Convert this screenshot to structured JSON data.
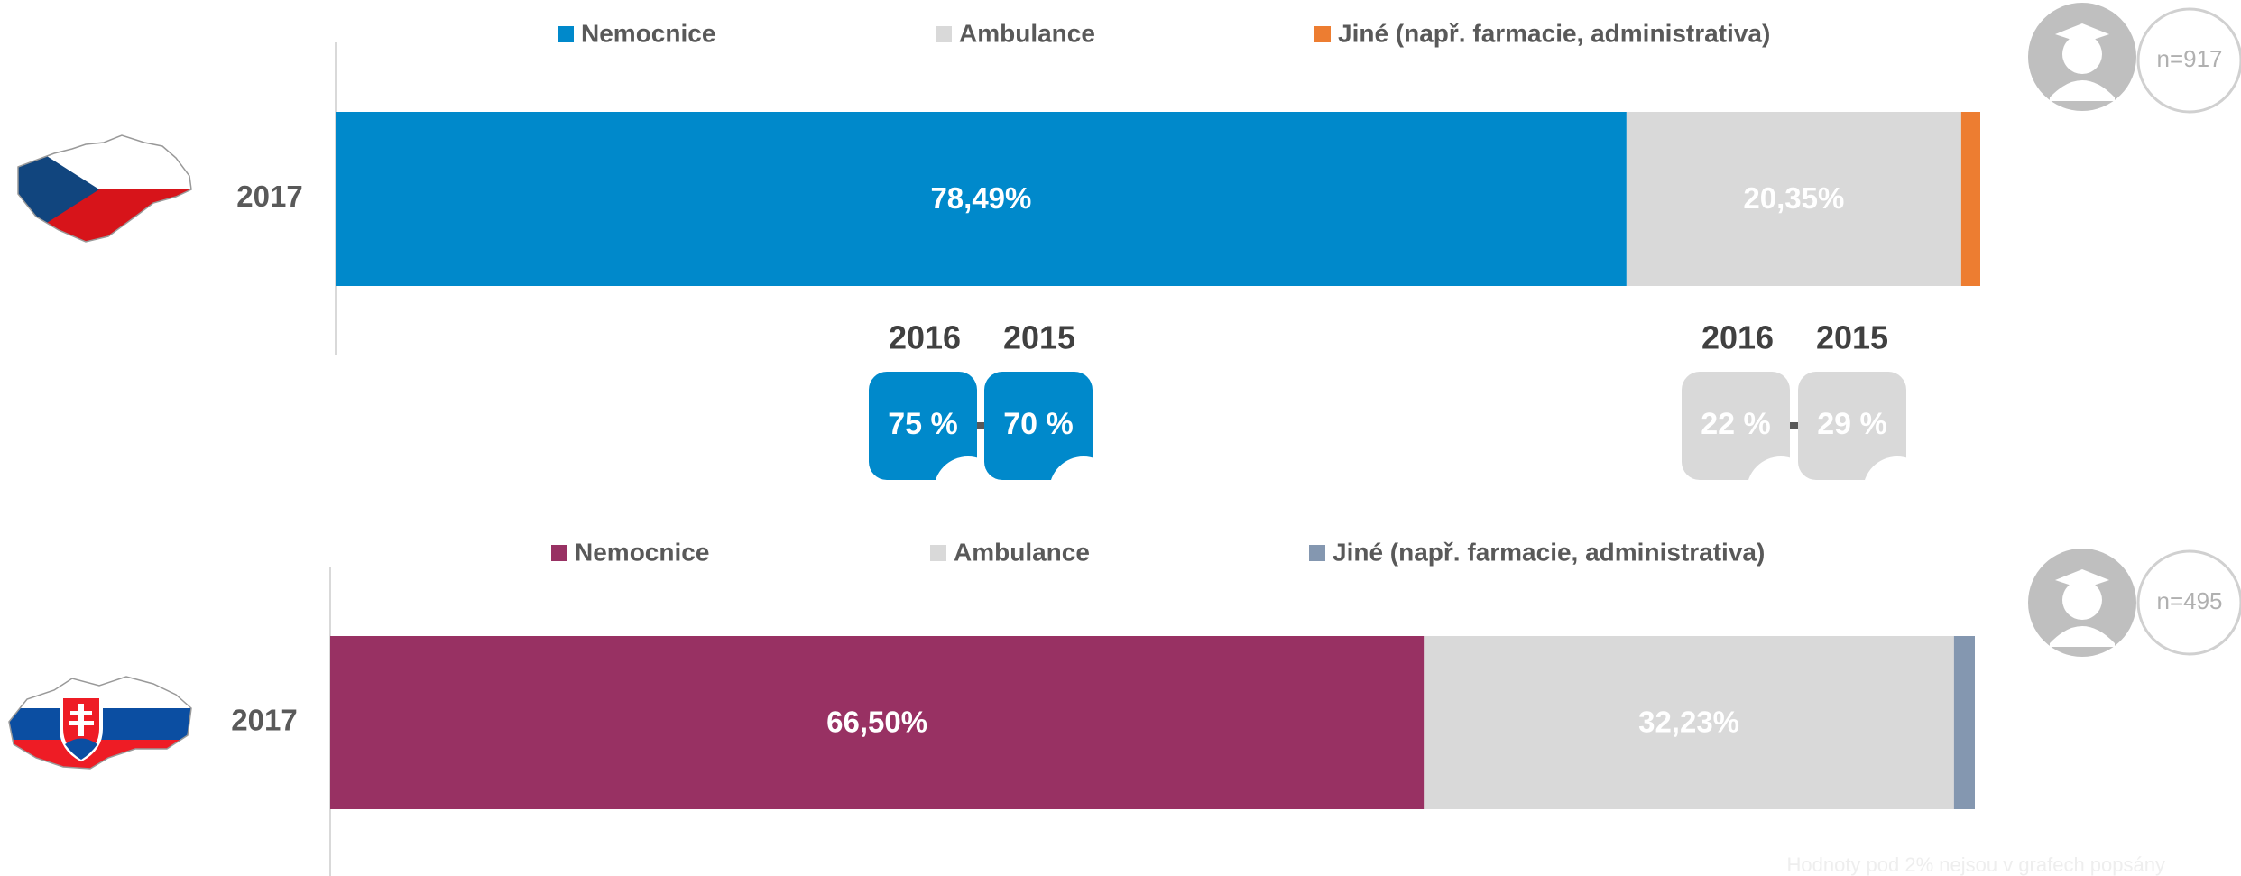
{
  "chart_data": [
    {
      "type": "stacked-bar",
      "categories": [
        "2017"
      ],
      "xlim": [
        0,
        100
      ],
      "n_label": "n=917",
      "series": [
        {
          "name": "Nemocnice",
          "color": "#0089cb",
          "values": [
            78.49
          ],
          "value_labels": [
            "78,49%"
          ]
        },
        {
          "name": "Ambulance",
          "color": "#d9d9d9",
          "values": [
            20.35
          ],
          "value_labels": [
            "20,35%"
          ]
        },
        {
          "name": "Jiné (např. farmacie, administrativa)",
          "color": "#ed7d31",
          "values": [
            1.16
          ],
          "value_labels": [
            null
          ]
        }
      ],
      "history": [
        {
          "years": [
            "2016",
            "2015"
          ],
          "values": [
            75,
            70
          ],
          "value_labels": [
            "75 %",
            "70 %"
          ],
          "color": "#0089cb"
        },
        {
          "years": [
            "2016",
            "2015"
          ],
          "values": [
            22,
            29
          ],
          "value_labels": [
            "22 %",
            "29 %"
          ],
          "color": "#d9d9d9"
        }
      ]
    },
    {
      "type": "stacked-bar",
      "categories": [
        "2017"
      ],
      "xlim": [
        0,
        100
      ],
      "n_label": "n=495",
      "series": [
        {
          "name": "Nemocnice",
          "color": "#983163",
          "values": [
            66.5
          ],
          "value_labels": [
            "66,50%"
          ]
        },
        {
          "name": "Ambulance",
          "color": "#d9d9d9",
          "values": [
            32.23
          ],
          "value_labels": [
            "32,23%"
          ]
        },
        {
          "name": "Jiné (např. farmacie, administrativa)",
          "color": "#8497b0",
          "values": [
            1.27
          ],
          "value_labels": [
            null
          ]
        }
      ]
    }
  ],
  "footnote": "Hodnoty pod 2% nejsou v grafech popsány"
}
